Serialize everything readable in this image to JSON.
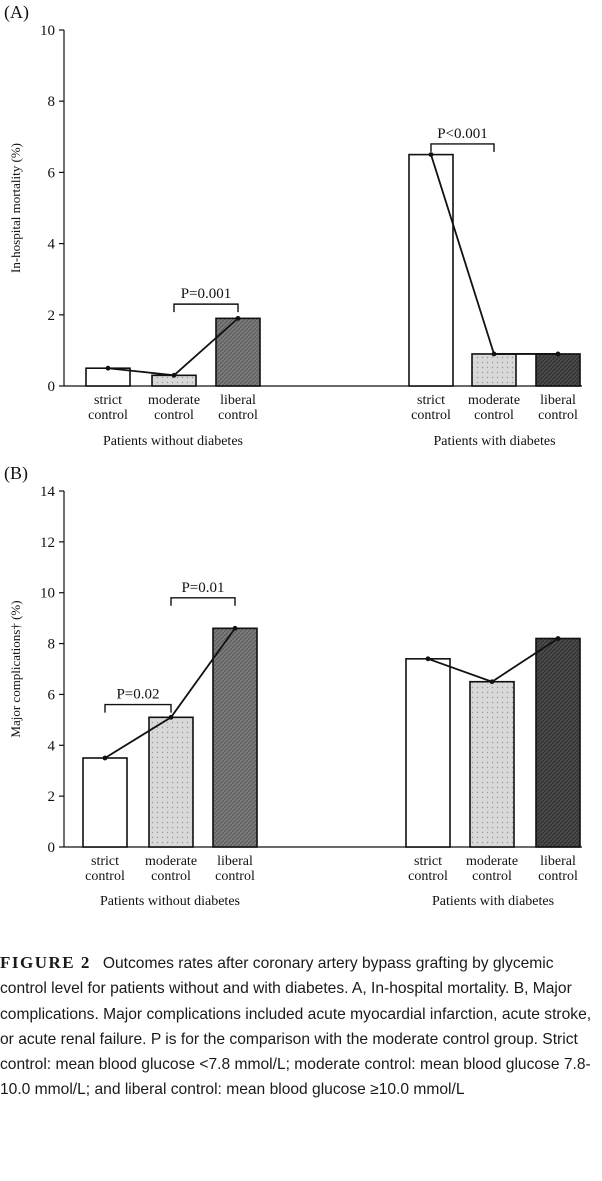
{
  "chart_data": [
    {
      "type": "bar",
      "panel_label": "(A)",
      "ylabel": "In-hospital mortality (%)",
      "ylim": [
        0,
        10
      ],
      "yticks": [
        0,
        2,
        4,
        6,
        8,
        10
      ],
      "groups": [
        {
          "name": "Patients without diabetes",
          "categories": [
            "strict control",
            "moderate control",
            "liberal control"
          ],
          "values": [
            0.5,
            0.3,
            1.9
          ],
          "annotations": [
            {
              "label": "P=0.001",
              "from": 1,
              "to": 2
            }
          ]
        },
        {
          "name": "Patients with diabetes",
          "categories": [
            "strict control",
            "moderate control",
            "liberal control"
          ],
          "values": [
            6.5,
            0.9,
            0.9
          ],
          "annotations": [
            {
              "label": "P<0.001",
              "from": 0,
              "to": 1
            }
          ]
        }
      ]
    },
    {
      "type": "bar",
      "panel_label": "(B)",
      "ylabel": "Major complications† (%)",
      "ylim": [
        0,
        14
      ],
      "yticks": [
        0,
        2,
        4,
        6,
        8,
        10,
        12,
        14
      ],
      "groups": [
        {
          "name": "Patients without diabetes",
          "categories": [
            "strict control",
            "moderate control",
            "liberal control"
          ],
          "values": [
            3.5,
            5.1,
            8.6
          ],
          "annotations": [
            {
              "label": "P=0.02",
              "from": 0,
              "to": 1
            },
            {
              "label": "P=0.01",
              "from": 1,
              "to": 2
            }
          ]
        },
        {
          "name": "Patients with diabetes",
          "categories": [
            "strict control",
            "moderate control",
            "liberal control"
          ],
          "values": [
            7.4,
            6.5,
            8.2
          ],
          "annotations": []
        }
      ]
    }
  ],
  "caption": {
    "label": "FIGURE 2",
    "text": "Outcomes rates after coronary artery bypass grafting by glycemic control level for patients without and with diabetes. A, In-hospital mortality. B, Major complications. Major complications included acute myocardial infarction, acute stroke, or acute renal failure. P is for the comparison with the moderate control group. Strict control: mean blood glucose <7.8 mmol/L; moderate control: mean blood glucose 7.8-10.0 mmol/L; and liberal control: mean blood glucose ≥10.0 mmol/L"
  },
  "colors": {
    "strict": "#ffffff",
    "moderate": "#d9d9d9",
    "liberal_light": "#7a7a7a",
    "liberal_dark": "#4a4a4a"
  }
}
